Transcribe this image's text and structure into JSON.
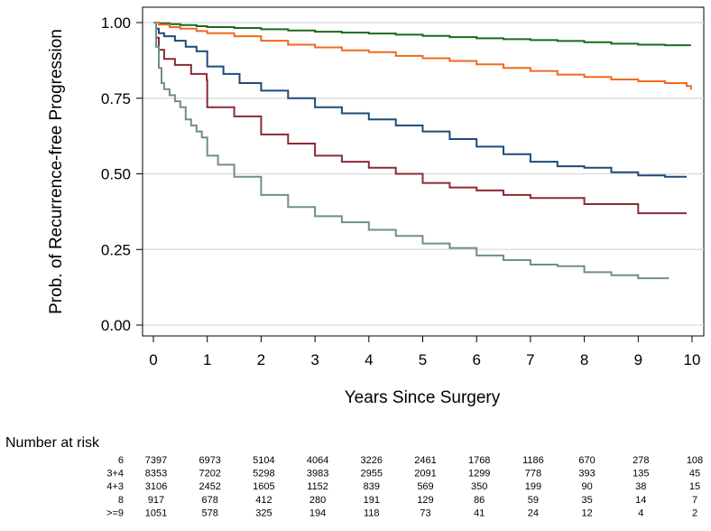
{
  "chart_data": {
    "type": "line",
    "title": "",
    "xlabel": "Years Since Surgery",
    "ylabel": "Prob. of Recurrence-free Progression",
    "xlim": [
      0,
      10
    ],
    "ylim": [
      0,
      1
    ],
    "x_ticks": [
      "0",
      "1",
      "2",
      "3",
      "4",
      "5",
      "6",
      "7",
      "8",
      "9",
      "10"
    ],
    "y_ticks": [
      "0.00",
      "0.25",
      "0.50",
      "0.75",
      "1.00"
    ],
    "y_tick_values": [
      0,
      0.25,
      0.5,
      0.75,
      1.0
    ],
    "grid": "horizontal",
    "series": [
      {
        "name": "6",
        "color": "#1a6b1a",
        "x": [
          0,
          0.1,
          0.3,
          0.5,
          0.8,
          1.0,
          1.5,
          2.0,
          2.5,
          3.0,
          3.5,
          4.0,
          4.5,
          5.0,
          5.5,
          6.0,
          6.5,
          7.0,
          7.5,
          8.0,
          8.5,
          9.0,
          9.5,
          9.98
        ],
        "y": [
          1.0,
          0.998,
          0.995,
          0.992,
          0.988,
          0.985,
          0.982,
          0.978,
          0.974,
          0.97,
          0.967,
          0.964,
          0.96,
          0.956,
          0.952,
          0.948,
          0.945,
          0.942,
          0.939,
          0.935,
          0.93,
          0.927,
          0.925,
          0.925
        ]
      },
      {
        "name": "3+4",
        "color": "#f06a1c",
        "x": [
          0,
          0.1,
          0.3,
          0.5,
          0.8,
          1.0,
          1.5,
          2.0,
          2.5,
          3.0,
          3.5,
          4.0,
          4.5,
          5.0,
          5.5,
          6.0,
          6.5,
          7.0,
          7.5,
          8.0,
          8.5,
          9.0,
          9.5,
          9.9,
          9.98
        ],
        "y": [
          1.0,
          0.993,
          0.985,
          0.98,
          0.972,
          0.965,
          0.955,
          0.94,
          0.927,
          0.918,
          0.908,
          0.902,
          0.89,
          0.882,
          0.873,
          0.862,
          0.85,
          0.84,
          0.828,
          0.82,
          0.812,
          0.806,
          0.8,
          0.79,
          0.778
        ]
      },
      {
        "name": "4+3",
        "color": "#1f4a7a",
        "x": [
          0,
          0.05,
          0.1,
          0.2,
          0.4,
          0.6,
          0.8,
          1.0,
          1.3,
          1.6,
          2.0,
          2.5,
          3.0,
          3.5,
          4.0,
          4.5,
          5.0,
          5.5,
          6.0,
          6.5,
          7.0,
          7.5,
          8.0,
          8.5,
          9.0,
          9.5,
          9.9
        ],
        "y": [
          1.0,
          0.98,
          0.965,
          0.955,
          0.94,
          0.92,
          0.905,
          0.855,
          0.83,
          0.8,
          0.775,
          0.75,
          0.72,
          0.7,
          0.68,
          0.66,
          0.64,
          0.615,
          0.59,
          0.565,
          0.54,
          0.525,
          0.52,
          0.505,
          0.495,
          0.49,
          0.49
        ]
      },
      {
        "name": "8",
        "color": "#8b2a35",
        "x": [
          0,
          0.05,
          0.1,
          0.2,
          0.4,
          0.7,
          0.99,
          1.0,
          1.5,
          2.0,
          2.5,
          3.0,
          3.5,
          4.0,
          4.5,
          5.0,
          5.5,
          6.0,
          6.5,
          7.0,
          7.5,
          8.0,
          8.5,
          9.0,
          9.5,
          9.9
        ],
        "y": [
          1.0,
          0.95,
          0.91,
          0.88,
          0.86,
          0.83,
          0.81,
          0.72,
          0.69,
          0.63,
          0.6,
          0.56,
          0.54,
          0.52,
          0.5,
          0.47,
          0.455,
          0.445,
          0.43,
          0.42,
          0.42,
          0.4,
          0.4,
          0.37,
          0.37,
          0.37
        ]
      },
      {
        "name": ">=9",
        "color": "#6f8f87",
        "x": [
          0,
          0.05,
          0.1,
          0.15,
          0.2,
          0.3,
          0.4,
          0.5,
          0.6,
          0.7,
          0.8,
          0.9,
          1.0,
          1.2,
          1.5,
          2.0,
          2.5,
          3.0,
          3.5,
          4.0,
          4.5,
          5.0,
          5.5,
          6.0,
          6.5,
          7.0,
          7.5,
          8.0,
          8.5,
          9.0,
          9.57
        ],
        "y": [
          1.0,
          0.92,
          0.85,
          0.8,
          0.78,
          0.76,
          0.74,
          0.72,
          0.68,
          0.66,
          0.64,
          0.62,
          0.56,
          0.53,
          0.49,
          0.43,
          0.39,
          0.36,
          0.34,
          0.315,
          0.295,
          0.27,
          0.255,
          0.23,
          0.215,
          0.2,
          0.195,
          0.175,
          0.165,
          0.155,
          0.155
        ]
      }
    ]
  },
  "risk_table": {
    "title": "Number at risk",
    "rows": [
      {
        "label": "6",
        "values": [
          "7397",
          "6973",
          "5104",
          "4064",
          "3226",
          "2461",
          "1768",
          "1186",
          "670",
          "278",
          "108"
        ]
      },
      {
        "label": "3+4",
        "values": [
          "8353",
          "7202",
          "5298",
          "3983",
          "2955",
          "2091",
          "1299",
          "778",
          "393",
          "135",
          "45"
        ]
      },
      {
        "label": "4+3",
        "values": [
          "3106",
          "2452",
          "1605",
          "1152",
          "839",
          "569",
          "350",
          "199",
          "90",
          "38",
          "15"
        ]
      },
      {
        "label": "8",
        "values": [
          "917",
          "678",
          "412",
          "280",
          "191",
          "129",
          "86",
          "59",
          "35",
          "14",
          "7"
        ]
      },
      {
        "label": ">=9",
        "values": [
          "1051",
          "578",
          "325",
          "194",
          "118",
          "73",
          "41",
          "24",
          "12",
          "4",
          "2"
        ]
      }
    ]
  }
}
